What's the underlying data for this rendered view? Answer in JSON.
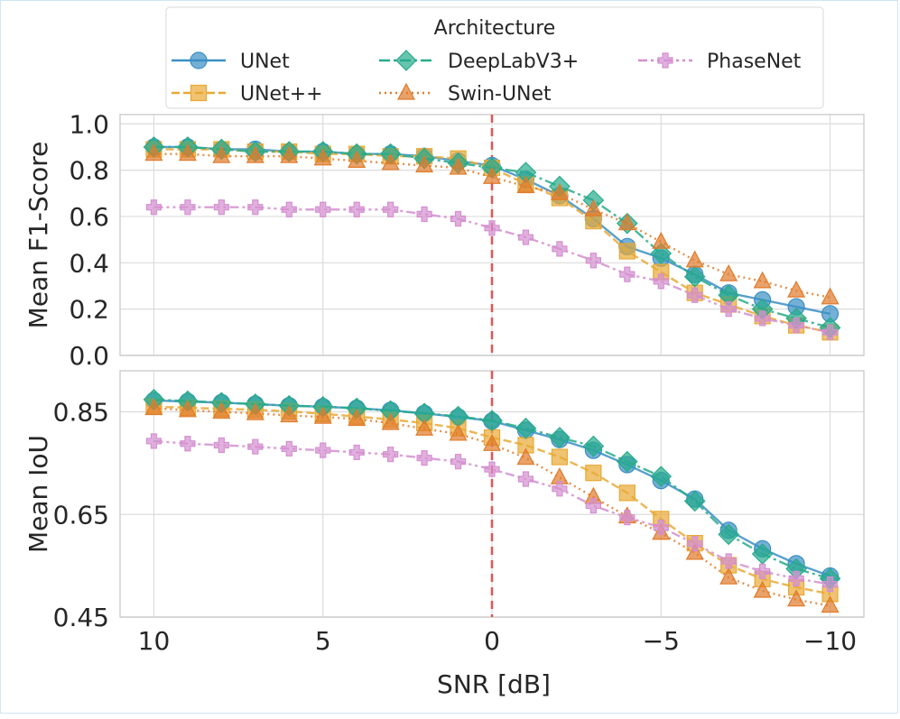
{
  "chart_data": [
    {
      "type": "line",
      "ylabel": "Mean F1-Score",
      "xlabel": "",
      "ylim": [
        0.0,
        1.04
      ],
      "yticks": [
        0.0,
        0.2,
        0.4,
        0.6,
        0.8,
        1.0
      ],
      "ytick_labels": [
        "0.0",
        "0.2",
        "0.4",
        "0.6",
        "0.8",
        "1.0"
      ],
      "x": [
        10,
        9,
        8,
        7,
        6,
        5,
        4,
        3,
        2,
        1,
        0,
        -1,
        -2,
        -3,
        -4,
        -5,
        -6,
        -7,
        -8,
        -9,
        -10
      ],
      "series": [
        {
          "name": "UNet",
          "values": [
            0.9,
            0.9,
            0.89,
            0.89,
            0.88,
            0.88,
            0.87,
            0.87,
            0.86,
            0.84,
            0.82,
            0.76,
            0.69,
            0.59,
            0.47,
            0.42,
            0.35,
            0.27,
            0.24,
            0.21,
            0.18
          ]
        },
        {
          "name": "UNet++",
          "values": [
            0.89,
            0.89,
            0.89,
            0.88,
            0.88,
            0.87,
            0.87,
            0.86,
            0.86,
            0.85,
            0.81,
            0.74,
            0.68,
            0.58,
            0.45,
            0.36,
            0.27,
            0.22,
            0.17,
            0.13,
            0.1
          ]
        },
        {
          "name": "DeepLabV3+",
          "values": [
            0.9,
            0.9,
            0.89,
            0.88,
            0.88,
            0.88,
            0.87,
            0.87,
            0.85,
            0.83,
            0.81,
            0.79,
            0.73,
            0.67,
            0.57,
            0.44,
            0.34,
            0.26,
            0.2,
            0.16,
            0.12
          ]
        },
        {
          "name": "Swin-UNet",
          "values": [
            0.87,
            0.87,
            0.86,
            0.86,
            0.86,
            0.85,
            0.84,
            0.83,
            0.82,
            0.81,
            0.77,
            0.73,
            0.7,
            0.63,
            0.57,
            0.49,
            0.41,
            0.35,
            0.32,
            0.28,
            0.25
          ]
        },
        {
          "name": "PhaseNet",
          "values": [
            0.64,
            0.64,
            0.64,
            0.64,
            0.63,
            0.63,
            0.63,
            0.63,
            0.61,
            0.59,
            0.55,
            0.51,
            0.46,
            0.41,
            0.35,
            0.32,
            0.26,
            0.2,
            0.16,
            0.13,
            0.1
          ]
        }
      ]
    },
    {
      "type": "line",
      "ylabel": "Mean IoU",
      "xlabel": "SNR [dB]",
      "ylim": [
        0.45,
        0.93
      ],
      "yticks": [
        0.45,
        0.65,
        0.85
      ],
      "ytick_labels": [
        "0.45",
        "0.65",
        "0.85"
      ],
      "x": [
        10,
        9,
        8,
        7,
        6,
        5,
        4,
        3,
        2,
        1,
        0,
        -1,
        -2,
        -3,
        -4,
        -5,
        -6,
        -7,
        -8,
        -9,
        -10
      ],
      "xticks": [
        10,
        5,
        0,
        -5,
        -10
      ],
      "xtick_labels": [
        "10",
        "5",
        "0",
        "−5",
        "−10"
      ],
      "series": [
        {
          "name": "UNet",
          "values": [
            0.872,
            0.87,
            0.868,
            0.865,
            0.862,
            0.86,
            0.857,
            0.853,
            0.847,
            0.84,
            0.832,
            0.814,
            0.796,
            0.775,
            0.747,
            0.716,
            0.68,
            0.619,
            0.583,
            0.554,
            0.53
          ]
        },
        {
          "name": "UNet++",
          "values": [
            0.86,
            0.858,
            0.856,
            0.854,
            0.851,
            0.846,
            0.841,
            0.835,
            0.828,
            0.818,
            0.8,
            0.785,
            0.762,
            0.731,
            0.692,
            0.641,
            0.594,
            0.551,
            0.524,
            0.508,
            0.495
          ]
        },
        {
          "name": "DeepLabV3+",
          "values": [
            0.874,
            0.871,
            0.868,
            0.865,
            0.862,
            0.86,
            0.857,
            0.852,
            0.847,
            0.841,
            0.833,
            0.818,
            0.8,
            0.783,
            0.753,
            0.724,
            0.676,
            0.611,
            0.573,
            0.544,
            0.525
          ]
        },
        {
          "name": "Swin-UNet",
          "values": [
            0.857,
            0.853,
            0.85,
            0.847,
            0.843,
            0.84,
            0.836,
            0.828,
            0.817,
            0.807,
            0.787,
            0.76,
            0.722,
            0.684,
            0.646,
            0.614,
            0.575,
            0.527,
            0.501,
            0.484,
            0.472
          ]
        },
        {
          "name": "PhaseNet",
          "values": [
            0.793,
            0.788,
            0.785,
            0.782,
            0.778,
            0.775,
            0.771,
            0.767,
            0.76,
            0.753,
            0.738,
            0.719,
            0.7,
            0.667,
            0.644,
            0.625,
            0.593,
            0.559,
            0.539,
            0.525,
            0.514
          ]
        }
      ]
    }
  ],
  "legend": {
    "title": "Architecture",
    "placement": "top-center",
    "entries": [
      "UNet",
      "UNet++",
      "DeepLabV3+",
      "Swin-UNet",
      "PhaseNet"
    ]
  },
  "styles": {
    "UNet": {
      "color": "#3b8fc4",
      "marker": "circle",
      "dash": "solid"
    },
    "UNet++": {
      "color": "#e8a935",
      "marker": "square",
      "dash": "dashed"
    },
    "DeepLabV3+": {
      "color": "#27ab8b",
      "marker": "diamond",
      "dash": "dashdot"
    },
    "Swin-UNet": {
      "color": "#e07b2b",
      "marker": "triangle",
      "dash": "dotted"
    },
    "PhaseNet": {
      "color": "#d48fd0",
      "marker": "plus",
      "dash": "dashdotdot"
    }
  },
  "reference_line": {
    "x": 0,
    "color": "#e05555",
    "style": "dashed"
  }
}
